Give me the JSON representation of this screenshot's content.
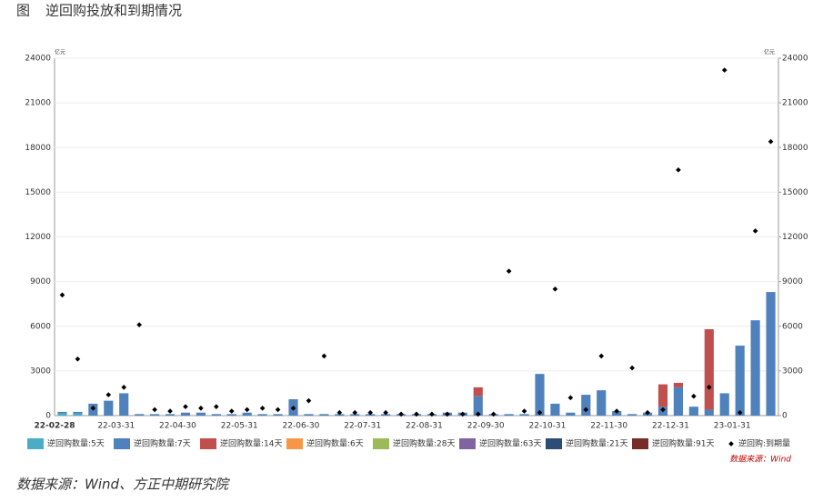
{
  "figure_label": "图",
  "footer": "数据来源：Wind、方正中期研究院",
  "chart_data": {
    "type": "bar",
    "title": "逆回购投放和到期情况",
    "source_note": "数据来源：Wind",
    "y_unit": "亿元",
    "y2_unit": "亿元",
    "categories": [
      "22-02-28",
      null,
      null,
      null,
      "22-03-31",
      null,
      null,
      null,
      "22-04-30",
      null,
      null,
      null,
      "22-05-31",
      null,
      null,
      null,
      "22-06-30",
      null,
      null,
      null,
      "22-07-31",
      null,
      null,
      null,
      "22-08-31",
      null,
      null,
      null,
      "22-09-30",
      null,
      null,
      null,
      "22-10-31",
      null,
      null,
      null,
      "22-11-30",
      null,
      null,
      null,
      "22-12-31",
      null,
      null,
      null,
      "23-01-31",
      null,
      null
    ],
    "ylim": [
      0,
      24000
    ],
    "yticks": [
      0,
      3000,
      6000,
      9000,
      12000,
      15000,
      18000,
      21000,
      24000
    ],
    "y2lim": [
      0,
      24000
    ],
    "y2ticks": [
      0,
      3000,
      6000,
      9000,
      12000,
      15000,
      18000,
      21000,
      24000
    ],
    "grid": true,
    "series": [
      {
        "name": "逆回购数量:5天",
        "color": "#4bacc6",
        "values": [
          150,
          150,
          0,
          0,
          0,
          0,
          0,
          0,
          0,
          0,
          0,
          0,
          0,
          0,
          0,
          0,
          0,
          0,
          0,
          0,
          0,
          0,
          0,
          0,
          0,
          0,
          0,
          0,
          0,
          0,
          0,
          0,
          0,
          0,
          0,
          0,
          0,
          0,
          0,
          0,
          0,
          0,
          0,
          0,
          0,
          0,
          0
        ]
      },
      {
        "name": "逆回购数量:7天",
        "color": "#4f81bd",
        "values": [
          100,
          100,
          800,
          1000,
          1500,
          100,
          100,
          100,
          200,
          200,
          100,
          100,
          200,
          100,
          100,
          1100,
          100,
          100,
          100,
          100,
          100,
          100,
          100,
          100,
          100,
          200,
          200,
          1300,
          100,
          100,
          100,
          2800,
          800,
          200,
          1400,
          1700,
          300,
          100,
          200,
          600,
          1900,
          600,
          400,
          1500,
          4700,
          6400,
          8300
        ]
      },
      {
        "name": "逆回购数量:14天",
        "color": "#c0504d",
        "values": [
          0,
          0,
          0,
          0,
          0,
          0,
          0,
          0,
          0,
          0,
          0,
          0,
          0,
          0,
          0,
          0,
          0,
          0,
          0,
          0,
          0,
          0,
          0,
          0,
          0,
          0,
          0,
          600,
          0,
          0,
          0,
          0,
          0,
          0,
          0,
          0,
          0,
          0,
          0,
          1500,
          300,
          0,
          5400,
          0,
          0,
          0,
          0
        ]
      },
      {
        "name": "逆回购数量:6天",
        "color": "#f79646",
        "values": [
          null,
          null,
          null,
          null,
          null,
          null,
          null,
          null,
          null,
          null,
          null,
          null,
          null,
          null,
          null,
          null,
          null,
          null,
          null,
          null,
          null,
          null,
          null,
          null,
          null,
          null,
          null,
          null,
          null,
          null,
          null,
          null,
          null,
          null,
          null,
          null,
          null,
          null,
          null,
          null,
          null,
          null,
          null,
          null,
          null,
          null,
          null
        ]
      },
      {
        "name": "逆回购数量:28天",
        "color": "#9bbb59",
        "values": [
          null,
          null,
          null,
          null,
          null,
          null,
          null,
          null,
          null,
          null,
          null,
          null,
          null,
          null,
          null,
          null,
          null,
          null,
          null,
          null,
          null,
          null,
          null,
          null,
          null,
          null,
          null,
          null,
          null,
          null,
          null,
          null,
          null,
          null,
          null,
          null,
          null,
          null,
          null,
          null,
          null,
          null,
          null,
          null,
          null,
          null,
          null
        ]
      },
      {
        "name": "逆回购数量:63天",
        "color": "#8064a2",
        "values": [
          null,
          null,
          null,
          null,
          null,
          null,
          null,
          null,
          null,
          null,
          null,
          null,
          null,
          null,
          null,
          null,
          null,
          null,
          null,
          null,
          null,
          null,
          null,
          null,
          null,
          null,
          null,
          null,
          null,
          null,
          null,
          null,
          null,
          null,
          null,
          null,
          null,
          null,
          null,
          null,
          null,
          null,
          null,
          null,
          null,
          null,
          null
        ]
      },
      {
        "name": "逆回购数量:21天",
        "color": "#2c4d75",
        "values": [
          null,
          null,
          null,
          null,
          null,
          null,
          null,
          null,
          null,
          null,
          null,
          null,
          null,
          null,
          null,
          null,
          null,
          null,
          null,
          null,
          null,
          null,
          null,
          null,
          null,
          null,
          null,
          null,
          null,
          null,
          null,
          null,
          null,
          null,
          null,
          null,
          null,
          null,
          null,
          null,
          null,
          null,
          null,
          null,
          null,
          null,
          null
        ]
      },
      {
        "name": "逆回购数量:91天",
        "color": "#772c2a",
        "values": [
          null,
          null,
          null,
          null,
          null,
          null,
          null,
          null,
          null,
          null,
          null,
          null,
          null,
          null,
          null,
          null,
          null,
          null,
          null,
          null,
          null,
          null,
          null,
          null,
          null,
          null,
          null,
          null,
          null,
          null,
          null,
          null,
          null,
          null,
          null,
          null,
          null,
          null,
          null,
          null,
          null,
          null,
          null,
          null,
          null,
          null,
          null
        ]
      },
      {
        "name": "逆回购:到期量",
        "color": "#000000",
        "type": "scatter",
        "axis": "y2",
        "values": [
          8100,
          3800,
          500,
          1400,
          1900,
          6100,
          400,
          300,
          600,
          500,
          600,
          300,
          400,
          500,
          400,
          500,
          1000,
          4000,
          200,
          200,
          200,
          200,
          100,
          100,
          100,
          100,
          100,
          100,
          100,
          9700,
          300,
          200,
          8500,
          1200,
          400,
          4000,
          300,
          3200,
          200,
          400,
          16500,
          1300,
          1900,
          23200,
          200,
          12400,
          18400
        ]
      }
    ]
  }
}
